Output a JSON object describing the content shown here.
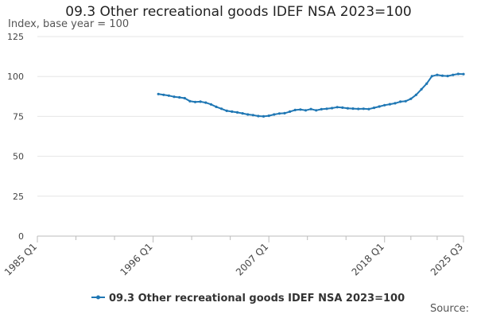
{
  "chart_data": {
    "type": "line",
    "title": "09.3 Other recreational goods IDEF NSA 2023=100",
    "ylabel": "Index, base year = 100",
    "xlabel": "",
    "source_label": "Source:",
    "ylim": [
      0,
      125
    ],
    "yticks": [
      0,
      25,
      50,
      75,
      100,
      125
    ],
    "xlim": [
      1985.0,
      2025.5
    ],
    "xticks": [
      {
        "value": 1985.0,
        "label": "1985 Q1"
      },
      {
        "value": 1996.0,
        "label": "1996 Q1"
      },
      {
        "value": 2007.0,
        "label": "2007 Q1"
      },
      {
        "value": 2018.0,
        "label": "2018 Q1"
      },
      {
        "value": 2025.5,
        "label": "2025 Q3"
      }
    ],
    "series": [
      {
        "name": "09.3 Other recreational goods IDEF NSA 2023=100",
        "color": "#1f77b4",
        "x": [
          1996.5,
          1997.0,
          1997.5,
          1998.0,
          1998.5,
          1999.0,
          1999.5,
          2000.0,
          2000.5,
          2001.0,
          2001.5,
          2002.0,
          2002.5,
          2003.0,
          2003.5,
          2004.0,
          2004.5,
          2005.0,
          2005.5,
          2006.0,
          2006.5,
          2007.0,
          2007.5,
          2008.0,
          2008.5,
          2009.0,
          2009.5,
          2010.0,
          2010.5,
          2011.0,
          2011.5,
          2012.0,
          2012.5,
          2013.0,
          2013.5,
          2014.0,
          2014.5,
          2015.0,
          2015.5,
          2016.0,
          2016.5,
          2017.0,
          2017.5,
          2018.0,
          2018.5,
          2019.0,
          2019.5,
          2020.0,
          2020.5,
          2021.0,
          2021.5,
          2022.0,
          2022.5,
          2023.0,
          2023.5,
          2024.0,
          2024.5,
          2025.0,
          2025.5
        ],
        "values": [
          89.0,
          88.5,
          88.0,
          87.3,
          86.9,
          86.4,
          84.5,
          84.0,
          84.2,
          83.6,
          82.5,
          81.0,
          79.8,
          78.5,
          78.0,
          77.5,
          76.9,
          76.2,
          75.8,
          75.2,
          75.0,
          75.4,
          76.2,
          76.8,
          77.0,
          78.0,
          79.0,
          79.3,
          78.8,
          79.6,
          78.8,
          79.5,
          79.8,
          80.2,
          80.8,
          80.5,
          80.1,
          79.9,
          79.7,
          79.8,
          79.6,
          80.4,
          81.2,
          82.0,
          82.6,
          83.2,
          84.2,
          84.5,
          86.0,
          88.5,
          92.0,
          95.5,
          100.2,
          101.0,
          100.5,
          100.3,
          101.0,
          101.6,
          101.5
        ]
      }
    ]
  }
}
